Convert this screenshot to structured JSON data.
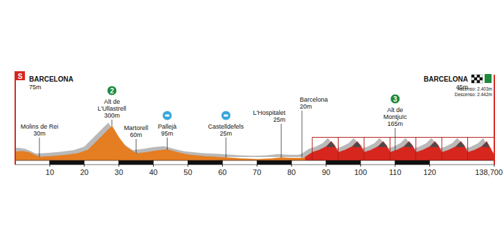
{
  "chart_data": {
    "type": "area",
    "start": {
      "label": "BARCELONA",
      "elevation": "75m",
      "marker": "S"
    },
    "finish": {
      "label": "BARCELONA",
      "elevation": "45m",
      "ascent": "Ascenso: 2.403m",
      "descent": "Descenso: 2.442m"
    },
    "xlim": [
      0,
      138.7
    ],
    "xticks": [
      10,
      20,
      30,
      40,
      50,
      60,
      70,
      80,
      90,
      100,
      110,
      120,
      {
        "value": 138.7,
        "label": "138,700"
      }
    ],
    "ylim": [
      0,
      800
    ],
    "tick_labels": "x",
    "series": [
      {
        "color": "#e57d22",
        "x": [
          0,
          2,
          4,
          7,
          10,
          14,
          18,
          21,
          23,
          25,
          27,
          28,
          30,
          32,
          35,
          38,
          41,
          44,
          47,
          50,
          55,
          61,
          66,
          70,
          74,
          77,
          80,
          83,
          84
        ],
        "values": [
          75,
          80,
          70,
          30,
          35,
          45,
          60,
          90,
          150,
          210,
          270,
          300,
          200,
          120,
          60,
          70,
          85,
          95,
          70,
          50,
          35,
          25,
          15,
          10,
          15,
          25,
          20,
          20,
          30
        ]
      },
      {
        "color": "#d7261e",
        "x": [
          84,
          86,
          88,
          90,
          91.5,
          92.5,
          93.5,
          95.5,
          97.5,
          99,
          100,
          101,
          103,
          105,
          106.5,
          107.5,
          108.5,
          110.5,
          112.5,
          114,
          115,
          116,
          118,
          120,
          121.5,
          122.5,
          123.5,
          125.5,
          127.5,
          129,
          130,
          131,
          133,
          135,
          136.5,
          137.7,
          138.7
        ],
        "values": [
          30,
          70,
          90,
          120,
          165,
          130,
          70,
          90,
          120,
          165,
          130,
          70,
          90,
          120,
          165,
          130,
          70,
          90,
          120,
          165,
          130,
          70,
          90,
          120,
          165,
          130,
          70,
          90,
          120,
          165,
          130,
          70,
          90,
          120,
          165,
          100,
          45
        ]
      }
    ],
    "annotations": [
      {
        "x": 7,
        "label": [
          "Molins de Rei"
        ],
        "elevation": "30m"
      },
      {
        "x": 28,
        "label": [
          "Alt de",
          "L'Ullastrell"
        ],
        "elevation": "300m",
        "type": "climb",
        "category": "2"
      },
      {
        "x": 35,
        "label": [
          "Martorell"
        ],
        "elevation": "60m"
      },
      {
        "x": 44,
        "label": [
          "Pallejà"
        ],
        "elevation": "95m",
        "type": "sprint"
      },
      {
        "x": 61,
        "label": [
          "Castelldefels"
        ],
        "elevation": "25m",
        "type": "sprint"
      },
      {
        "x": 77,
        "label": [
          "L'Hospitalet"
        ],
        "elevation": "25m"
      },
      {
        "x": 83,
        "label": [
          "Barcelona"
        ],
        "elevation": "20m"
      },
      {
        "x": 110,
        "label": [
          "Alt de",
          "Montjuïc"
        ],
        "elevation": "165m",
        "type": "climb",
        "category": "3"
      }
    ]
  }
}
